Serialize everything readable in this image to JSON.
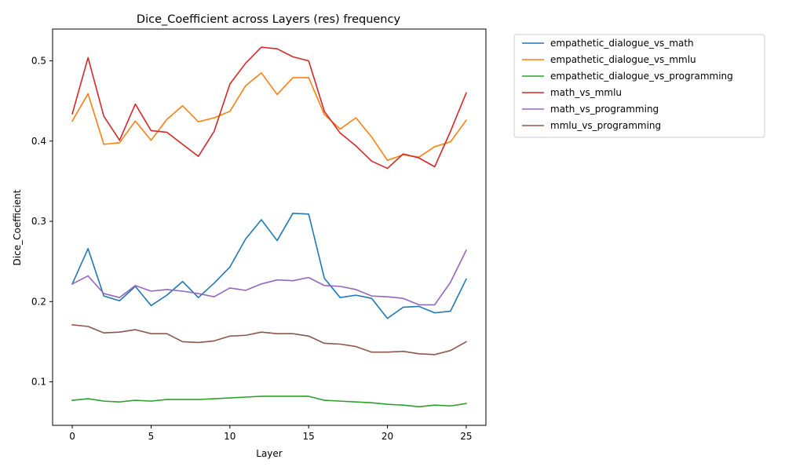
{
  "chart_data": {
    "type": "line",
    "title": "Dice_Coefficient across Layers (res) frequency",
    "xlabel": "Layer",
    "ylabel": "Dice_Coefficient",
    "xlim": [
      -1.25,
      26.25
    ],
    "ylim": [
      0.0458,
      0.5396
    ],
    "xticks": [
      0,
      5,
      10,
      15,
      20,
      25
    ],
    "xtick_labels": [
      "0",
      "5",
      "10",
      "15",
      "20",
      "25"
    ],
    "yticks": [
      0.1,
      0.2,
      0.3,
      0.4,
      0.5
    ],
    "ytick_labels": [
      "0.1",
      "0.2",
      "0.3",
      "0.4",
      "0.5"
    ],
    "grid": false,
    "legend_position": "outside-upper-right",
    "x": [
      0,
      1,
      2,
      3,
      4,
      5,
      6,
      7,
      8,
      9,
      10,
      11,
      12,
      13,
      14,
      15,
      16,
      17,
      18,
      19,
      20,
      21,
      22,
      23,
      24,
      25
    ],
    "series": [
      {
        "name": "empathetic_dialogue_vs_math",
        "color": "#1f77b4",
        "values": [
          0.222,
          0.266,
          0.207,
          0.201,
          0.219,
          0.195,
          0.208,
          0.225,
          0.205,
          0.223,
          0.243,
          0.278,
          0.302,
          0.276,
          0.31,
          0.309,
          0.229,
          0.205,
          0.208,
          0.204,
          0.179,
          0.193,
          0.194,
          0.186,
          0.188,
          0.228
        ]
      },
      {
        "name": "empathetic_dialogue_vs_mmlu",
        "color": "#ff7f0e",
        "values": [
          0.425,
          0.459,
          0.396,
          0.398,
          0.425,
          0.401,
          0.427,
          0.444,
          0.424,
          0.429,
          0.437,
          0.469,
          0.485,
          0.458,
          0.479,
          0.479,
          0.433,
          0.415,
          0.429,
          0.405,
          0.376,
          0.383,
          0.38,
          0.393,
          0.399,
          0.426
        ]
      },
      {
        "name": "empathetic_dialogue_vs_programming",
        "color": "#2ca02c",
        "values": [
          0.077,
          0.079,
          0.076,
          0.075,
          0.077,
          0.076,
          0.078,
          0.078,
          0.078,
          0.079,
          0.08,
          0.081,
          0.082,
          0.082,
          0.082,
          0.082,
          0.077,
          0.076,
          0.075,
          0.074,
          0.072,
          0.071,
          0.069,
          0.071,
          0.07,
          0.073
        ]
      },
      {
        "name": "math_vs_mmlu",
        "color": "#d62728",
        "values": [
          0.434,
          0.504,
          0.431,
          0.401,
          0.446,
          0.413,
          0.411,
          0.396,
          0.381,
          0.412,
          0.471,
          0.497,
          0.517,
          0.515,
          0.505,
          0.5,
          0.437,
          0.41,
          0.394,
          0.375,
          0.366,
          0.384,
          0.379,
          0.368,
          0.412,
          0.46
        ]
      },
      {
        "name": "math_vs_programming",
        "color": "#9467bd",
        "values": [
          0.222,
          0.232,
          0.21,
          0.205,
          0.22,
          0.213,
          0.215,
          0.213,
          0.21,
          0.206,
          0.217,
          0.214,
          0.222,
          0.227,
          0.226,
          0.23,
          0.22,
          0.219,
          0.215,
          0.207,
          0.206,
          0.204,
          0.196,
          0.196,
          0.224,
          0.264
        ]
      },
      {
        "name": "mmlu_vs_programming",
        "color": "#8c564b",
        "values": [
          0.171,
          0.169,
          0.161,
          0.162,
          0.165,
          0.16,
          0.16,
          0.15,
          0.149,
          0.151,
          0.157,
          0.158,
          0.162,
          0.16,
          0.16,
          0.157,
          0.148,
          0.147,
          0.144,
          0.137,
          0.137,
          0.138,
          0.135,
          0.134,
          0.139,
          0.15
        ]
      }
    ]
  }
}
